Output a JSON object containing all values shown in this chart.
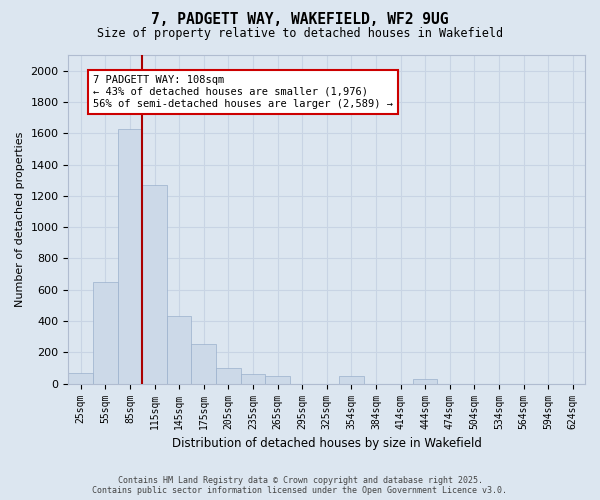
{
  "title_line1": "7, PADGETT WAY, WAKEFIELD, WF2 9UG",
  "title_line2": "Size of property relative to detached houses in Wakefield",
  "xlabel": "Distribution of detached houses by size in Wakefield",
  "ylabel": "Number of detached properties",
  "categories": [
    "25sqm",
    "55sqm",
    "85sqm",
    "115sqm",
    "145sqm",
    "175sqm",
    "205sqm",
    "235sqm",
    "265sqm",
    "295sqm",
    "325sqm",
    "354sqm",
    "384sqm",
    "414sqm",
    "444sqm",
    "474sqm",
    "504sqm",
    "534sqm",
    "564sqm",
    "594sqm",
    "624sqm"
  ],
  "values": [
    70,
    650,
    1630,
    1270,
    430,
    255,
    100,
    65,
    50,
    0,
    0,
    50,
    0,
    0,
    30,
    0,
    0,
    0,
    0,
    0,
    0
  ],
  "bar_color": "#ccd9e8",
  "bar_edge_color": "#9ab0cc",
  "grid_color": "#c8d4e4",
  "background_color": "#dce6f0",
  "vline_color": "#aa0000",
  "vline_x_index": 2,
  "annotation_text_line1": "7 PADGETT WAY: 108sqm",
  "annotation_text_line2": "← 43% of detached houses are smaller (1,976)",
  "annotation_text_line3": "56% of semi-detached houses are larger (2,589) →",
  "annotation_border_color": "#cc0000",
  "ylim": [
    0,
    2100
  ],
  "yticks": [
    0,
    200,
    400,
    600,
    800,
    1000,
    1200,
    1400,
    1600,
    1800,
    2000
  ],
  "footer_line1": "Contains HM Land Registry data © Crown copyright and database right 2025.",
  "footer_line2": "Contains public sector information licensed under the Open Government Licence v3.0."
}
